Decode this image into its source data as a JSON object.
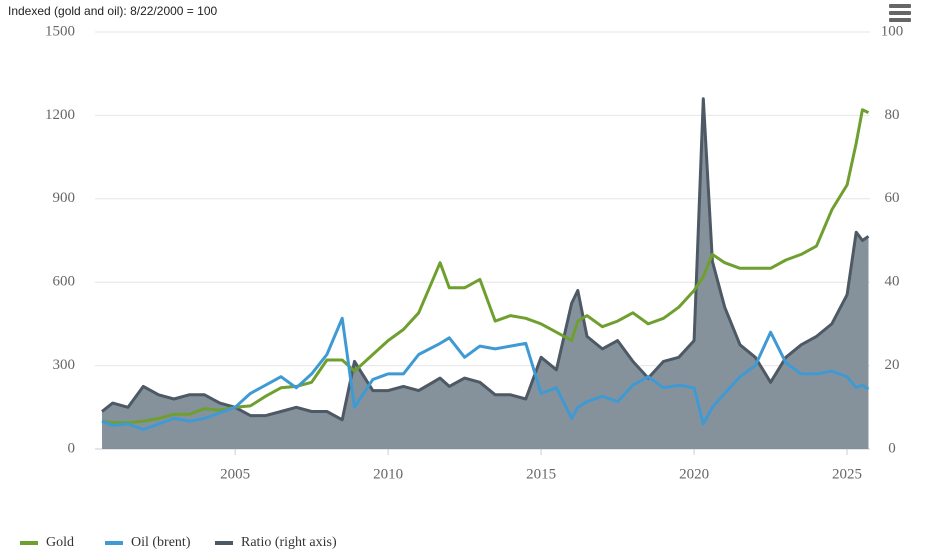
{
  "chart_data": {
    "type": "line",
    "title": "Indexed (gold and oil): 8/22/2000 = 100",
    "x": [
      2000.65,
      2001.0,
      2001.5,
      2002.0,
      2002.5,
      2003.0,
      2003.5,
      2004.0,
      2004.5,
      2005.0,
      2005.5,
      2006.0,
      2006.5,
      2007.0,
      2007.5,
      2008.0,
      2008.5,
      2008.9,
      2009.5,
      2010.0,
      2010.5,
      2011.0,
      2011.7,
      2012.0,
      2012.5,
      2013.0,
      2013.5,
      2014.0,
      2014.5,
      2015.0,
      2015.5,
      2016.0,
      2016.2,
      2016.5,
      2017.0,
      2017.5,
      2018.0,
      2018.5,
      2019.0,
      2019.5,
      2020.0,
      2020.3,
      2020.6,
      2021.0,
      2021.5,
      2022.0,
      2022.5,
      2023.0,
      2023.5,
      2024.0,
      2024.5,
      2025.0,
      2025.3,
      2025.5,
      2025.7
    ],
    "series": [
      {
        "name": "Gold",
        "color": "#6f9f2f",
        "values": [
          100,
          95,
          95,
          100,
          110,
          125,
          125,
          145,
          140,
          150,
          155,
          190,
          220,
          225,
          240,
          320,
          320,
          280,
          340,
          390,
          430,
          490,
          670,
          580,
          580,
          610,
          460,
          480,
          470,
          450,
          420,
          390,
          460,
          480,
          440,
          460,
          490,
          450,
          470,
          510,
          570,
          620,
          700,
          670,
          650,
          650,
          650,
          680,
          700,
          730,
          860,
          950,
          1100,
          1220,
          1210
        ]
      },
      {
        "name": "Oil (brent)",
        "color": "#3f9ad4",
        "values": [
          100,
          85,
          90,
          70,
          90,
          110,
          100,
          110,
          130,
          150,
          200,
          230,
          260,
          220,
          270,
          340,
          470,
          150,
          250,
          270,
          270,
          340,
          380,
          400,
          330,
          370,
          360,
          370,
          380,
          200,
          220,
          110,
          150,
          170,
          190,
          170,
          230,
          260,
          220,
          230,
          220,
          90,
          150,
          200,
          260,
          300,
          420,
          310,
          270,
          270,
          280,
          260,
          220,
          230,
          215
        ]
      },
      {
        "name": "Ratio (right axis)",
        "color": "#4d5965",
        "axis": "y2",
        "values": [
          9,
          11,
          10,
          15,
          13,
          12,
          13,
          13,
          11,
          10,
          8,
          8,
          9,
          10,
          9,
          9,
          7,
          21,
          14,
          14,
          15,
          14,
          17,
          15,
          17,
          16,
          13,
          13,
          12,
          22,
          19,
          35,
          38,
          27,
          24,
          26,
          21,
          17,
          21,
          22,
          26,
          84,
          45,
          34,
          25,
          22,
          16,
          22,
          25,
          27,
          30,
          37,
          52,
          50,
          51
        ]
      }
    ],
    "xlim": [
      2000.42,
      2025.75
    ],
    "xticks": [
      2005,
      2010,
      2015,
      2020,
      2025
    ],
    "ylim": [
      0,
      1500
    ],
    "yticks": [
      0,
      300,
      600,
      900,
      1200,
      1500
    ],
    "y2lim": [
      0,
      100
    ],
    "y2ticks": [
      0,
      20,
      40,
      60,
      80,
      100
    ],
    "grid": true
  }
}
